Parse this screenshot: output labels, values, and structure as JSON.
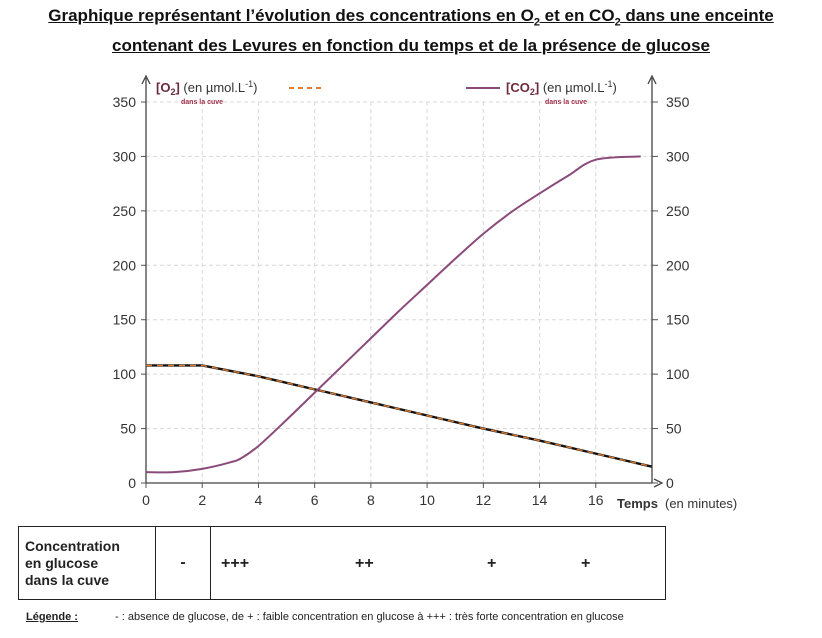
{
  "title_line1": "Graphique représentant l’évolution des concentrations en O",
  "title_sub1": "2",
  "title_mid": " et en CO",
  "title_sub2": "2",
  "title_end": " dans une enceinte",
  "title_line2": "contenant des Levures en fonction du temps et de la présence de glucose",
  "chart_data": {
    "type": "line",
    "xlabel": "Temps",
    "xlabel_unit": "(en minutes)",
    "ylabel_left": "[O2] (en µmol.L-1)",
    "ylabel_left_note": "dans la cuve",
    "ylabel_right": "[CO2] (en µmol.L-1)",
    "ylabel_right_note": "dans la cuve",
    "xlim": [
      0,
      18
    ],
    "ylim": [
      0,
      350
    ],
    "xticks": [
      "0",
      "2",
      "4",
      "6",
      "8",
      "10",
      "12",
      "14",
      "16"
    ],
    "yticks": [
      "0",
      "50",
      "100",
      "150",
      "200",
      "250",
      "300",
      "350"
    ],
    "grid": true,
    "series": [
      {
        "name": "[O2]",
        "color": "#e07b2f",
        "style": "dashed",
        "x": [
          0,
          2,
          4,
          6,
          8,
          10,
          12,
          14,
          16,
          18
        ],
        "y": [
          108,
          108,
          98,
          86,
          74,
          62,
          50,
          39,
          27,
          15
        ]
      },
      {
        "name": "[CO2]",
        "color": "#8a4a7a",
        "style": "solid",
        "x": [
          0,
          1,
          2,
          3,
          3.4,
          4,
          5,
          6,
          7,
          8,
          9,
          10,
          11,
          12,
          13,
          14,
          15,
          16,
          17.6
        ],
        "y": [
          10,
          10,
          13,
          19,
          23,
          34,
          58,
          83,
          108,
          133,
          158,
          182,
          206,
          229,
          249,
          266,
          282,
          297,
          300
        ]
      }
    ]
  },
  "glucose_table": {
    "header_l1": "Concentration",
    "header_l2": "en glucose",
    "header_l3": "dans la cuve",
    "first": "-",
    "levels": [
      "+++",
      "++",
      "+",
      "+"
    ]
  },
  "legend_label": "Légende :",
  "legend_text": "- : absence de glucose, de + : faible concentration en glucose à +++ : très forte concentration en glucose"
}
